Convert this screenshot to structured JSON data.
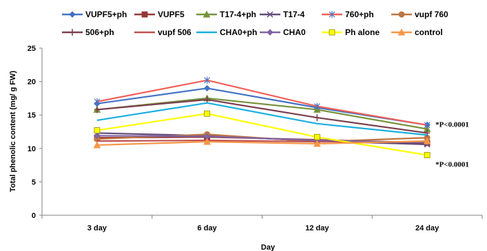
{
  "chart_data": {
    "type": "line",
    "title": "",
    "xlabel": "Day",
    "ylabel": "Total phenolic content (mg/ g FW)",
    "ylim": [
      0,
      25
    ],
    "yticks": [
      0,
      5,
      10,
      15,
      20,
      25
    ],
    "grid": false,
    "legend_position": "top",
    "categories": [
      "3 day",
      "6 day",
      "12 day",
      "24 day"
    ],
    "series": [
      {
        "name": "VUPF5+ph",
        "color": "#4472C4",
        "marker": "diamond",
        "values": [
          16.7,
          19.0,
          16.1,
          13.5
        ]
      },
      {
        "name": "VUPF5",
        "color": "#953735",
        "marker": "square",
        "values": [
          11.6,
          11.7,
          11.3,
          10.8
        ]
      },
      {
        "name": "T17-4+ph",
        "color": "#77933C",
        "marker": "triangle",
        "values": [
          15.8,
          17.5,
          15.8,
          12.9
        ]
      },
      {
        "name": "T17-4",
        "color": "#604A7B",
        "marker": "x",
        "values": [
          12.3,
          11.9,
          11.1,
          10.6
        ]
      },
      {
        "name": "760+ph",
        "color": "#F0605A",
        "marker": "star",
        "values": [
          17.0,
          20.2,
          16.3,
          13.5
        ]
      },
      {
        "name": "vupf 760",
        "color": "#C0753E",
        "marker": "circle",
        "values": [
          11.4,
          12.1,
          11.0,
          11.6
        ]
      },
      {
        "name": "506+ph",
        "color": "#7B3F4E",
        "marker": "plus",
        "values": [
          15.8,
          17.3,
          14.6,
          12.3
        ]
      },
      {
        "name": "vupf 506",
        "color": "#C0504D",
        "marker": "none",
        "values": [
          11.1,
          11.2,
          11.0,
          11.0
        ]
      },
      {
        "name": "CHA0+ph",
        "color": "#1AAFE0",
        "marker": "none",
        "values": [
          14.2,
          16.8,
          13.7,
          12.0
        ]
      },
      {
        "name": "CHA0",
        "color": "#8064A2",
        "marker": "diamond",
        "values": [
          11.9,
          11.8,
          11.2,
          10.9
        ]
      },
      {
        "name": "Ph alone",
        "color": "#FFFF00",
        "marker": "square",
        "values": [
          12.7,
          15.2,
          11.7,
          9.0
        ]
      },
      {
        "name": "control",
        "color": "#F79646",
        "marker": "triangle",
        "values": [
          10.5,
          11.0,
          10.7,
          11.1
        ]
      }
    ],
    "annotations": [
      {
        "text": "*P<0.0001",
        "anchor_series": "T17-4+ph",
        "anchor_index": 3
      },
      {
        "text": "*P<0.0001",
        "anchor_series": "Ph alone",
        "anchor_index": 3
      }
    ]
  }
}
